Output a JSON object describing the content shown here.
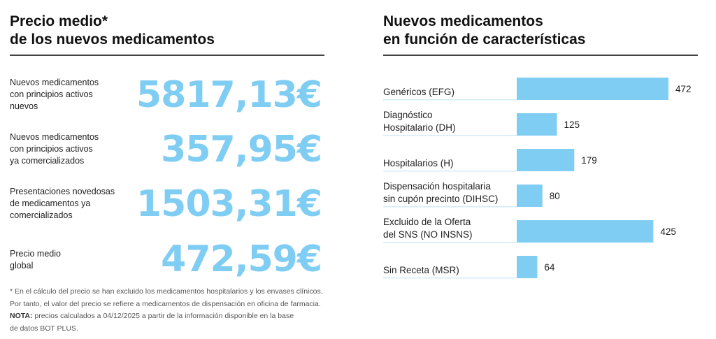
{
  "left_panel": {
    "title_line1": "Precio medio*",
    "title_line2": "de los nuevos medicamentos",
    "prices": [
      {
        "label": "Nuevos medicamentos\ncon principios activos\nnuevos",
        "value": "5817,13€"
      },
      {
        "label": "Nuevos medicamentos\ncon principios activos\nya comercializados",
        "value": "357,95€"
      },
      {
        "label": "Presentaciones novedosas\nde medicamentos ya\ncomercializados",
        "value": "1503,31€"
      },
      {
        "label": "Precio medio\nglobal",
        "value": "472,59€"
      }
    ],
    "footnote_line1": "* En el cálculo del precio se han excluido los medicamentos hospitalarios y los envases clínicos.",
    "footnote_line2": "Por tanto, el valor del precio se refiere a medicamentos de dispensación en oficina de farmacia.",
    "note_label": "NOTA:",
    "note_text": " precios calculados a 04/12/2025 a partir de la información disponible en la base",
    "note_line2": "de datos BOT PLUS."
  },
  "right_panel": {
    "title_line1": "Nuevos medicamentos",
    "title_line2": "en función de características"
  },
  "colors": {
    "accent": "#7fcdf3",
    "underline": "#d6ecf8",
    "rule": "#444444"
  },
  "chart_data": {
    "type": "bar",
    "orientation": "horizontal",
    "title": "Nuevos medicamentos en función de características",
    "xlabel": "",
    "ylabel": "",
    "categories": [
      [
        "Genéricos (EFG)"
      ],
      [
        "Diagnóstico",
        "Hospitalario (DH)"
      ],
      [
        "Hospitalarios (H)"
      ],
      [
        "Dispensación hospitalaria",
        "sin cupón precinto (DIHSC)"
      ],
      [
        "Excluido de la Oferta",
        "del SNS (NO INSNS)"
      ],
      [
        "Sin Receta (MSR)"
      ]
    ],
    "values": [
      472,
      125,
      179,
      80,
      425,
      64
    ],
    "value_labels": [
      "472",
      "125",
      "179",
      "80",
      "425",
      "64"
    ],
    "xlim": [
      0,
      472
    ],
    "grid": false,
    "legend": "none"
  }
}
